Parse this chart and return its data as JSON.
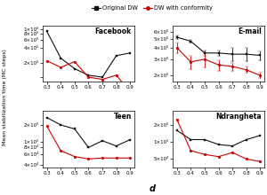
{
  "d_values": [
    0.3,
    0.4,
    0.5,
    0.6,
    0.7,
    0.8,
    0.9
  ],
  "facebook": {
    "black": [
      900000.0,
      250000.0,
      150000.0,
      110000.0,
      100000.0,
      280000.0,
      320000.0
    ],
    "red": [
      220000.0,
      160000.0,
      210000.0,
      100000.0,
      90000.0,
      110000.0,
      50000.0
    ],
    "black_err": [
      0,
      0,
      0,
      0,
      0,
      0,
      0
    ],
    "red_err": [
      0,
      0,
      0,
      0,
      0,
      0,
      0
    ],
    "yticks": [
      100000.0,
      200000.0,
      400000.0,
      600000.0,
      800000.0,
      1000000.0
    ],
    "ylim": [
      80000.0,
      1200000.0
    ],
    "ytick_labels": [
      "",
      "2×10⁵",
      "4×10⁵",
      "6×10⁵",
      "8×10⁵",
      "1×10⁶"
    ]
  },
  "email": {
    "black": [
      520000.0,
      470000.0,
      350000.0,
      350000.0,
      340000.0,
      340000.0,
      330000.0
    ],
    "red": [
      400000.0,
      280000.0,
      300000.0,
      260000.0,
      250000.0,
      230000.0,
      200000.0
    ],
    "black_err": [
      25000.0,
      18000.0,
      25000.0,
      25000.0,
      55000.0,
      55000.0,
      35000.0
    ],
    "red_err": [
      55000.0,
      45000.0,
      55000.0,
      35000.0,
      25000.0,
      18000.0,
      12000.0
    ],
    "yticks": [
      200000.0,
      300000.0,
      400000.0,
      500000.0,
      600000.0
    ],
    "ylim": [
      170000.0,
      700000.0
    ],
    "ytick_labels": [
      "2×10⁵",
      "3×10⁵",
      "4×10⁵",
      "5×10⁵",
      "6×10⁵"
    ]
  },
  "teen": {
    "black": [
      270000.0,
      200000.0,
      170000.0,
      80000.0,
      105000.0,
      85000.0,
      110000.0
    ],
    "red": [
      190000.0,
      70000.0,
      55000.0,
      50000.0,
      52000.0,
      52000.0,
      52000.0
    ],
    "black_err": [
      0,
      0,
      0,
      0,
      0,
      0,
      0
    ],
    "red_err": [
      0,
      0,
      0,
      0,
      0,
      0,
      0
    ],
    "yticks": [
      40000.0,
      60000.0,
      80000.0,
      100000.0,
      200000.0
    ],
    "ylim": [
      35000.0,
      350000.0
    ],
    "ytick_labels": [
      "4×10⁴",
      "6×10⁴",
      "8×10⁴",
      "1×10⁵",
      "2×10⁵"
    ]
  },
  "ndrangheta": {
    "black": [
      160000.0,
      110000.0,
      110000.0,
      90000.0,
      85000.0,
      110000.0,
      130000.0
    ],
    "red": [
      250000.0,
      70000.0,
      60000.0,
      55000.0,
      65000.0,
      50000.0,
      45000.0
    ],
    "black_err": [
      0,
      0,
      0,
      0,
      0,
      0,
      0
    ],
    "red_err": [
      0,
      0,
      0,
      0,
      0,
      0,
      0
    ],
    "yticks": [
      50000.0,
      100000.0,
      200000.0
    ],
    "ylim": [
      35000.0,
      350000.0
    ],
    "ytick_labels": [
      "5×10⁴",
      "1×10⁵",
      "2×10⁵"
    ]
  },
  "legend_black": "Original DW",
  "legend_red": "DW with conformity",
  "xlabel": "d",
  "ylabel": "Mean stabilization time (MC steps)",
  "black_color": "#111111",
  "red_color": "#cc0000"
}
